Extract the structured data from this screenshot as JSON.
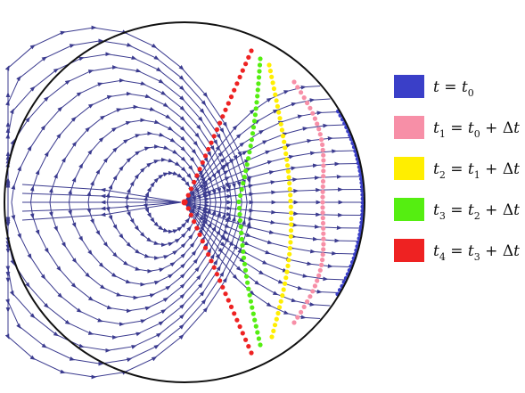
{
  "legend": {
    "items": [
      {
        "key": "t0",
        "color": "#3a3fc8",
        "lhs": "t",
        "lhs_sub": "",
        "rhs": "t",
        "rhs_sub": "0",
        "plus_dt": false
      },
      {
        "key": "t1",
        "color": "#f78fa7",
        "lhs": "t",
        "lhs_sub": "1",
        "rhs": "t",
        "rhs_sub": "0",
        "plus_dt": true
      },
      {
        "key": "t2",
        "color": "#ffee00",
        "lhs": "t",
        "lhs_sub": "2",
        "rhs": "t",
        "rhs_sub": "1",
        "plus_dt": true
      },
      {
        "key": "t3",
        "color": "#55ee11",
        "lhs": "t",
        "lhs_sub": "3",
        "rhs": "t",
        "rhs_sub": "2",
        "plus_dt": true
      },
      {
        "key": "t4",
        "color": "#ee2222",
        "lhs": "t",
        "lhs_sub": "4",
        "rhs": "t",
        "rhs_sub": "3",
        "plus_dt": true
      }
    ],
    "equals": "=",
    "plus": "+",
    "delta": "Δt"
  },
  "colors": {
    "streamline": "#3b3b8f",
    "boundary": "#111111",
    "critical_point": "#ee2222"
  }
}
